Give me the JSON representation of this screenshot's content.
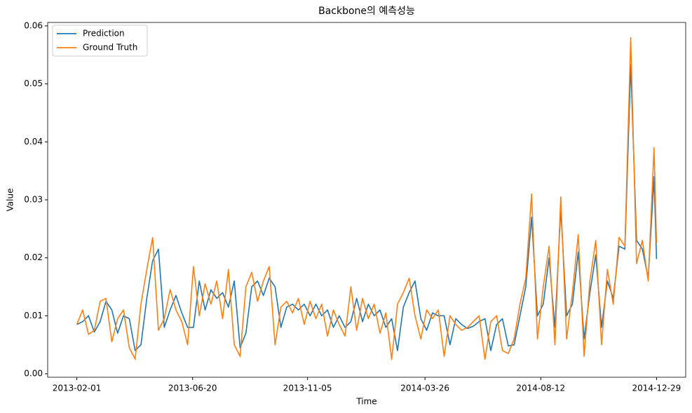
{
  "chart_data": {
    "type": "line",
    "title": "Backbone의 예측성능",
    "x_label": "Time",
    "y_label": "Value",
    "x": [
      "2013-02-01",
      "2013-02-08",
      "2013-02-15",
      "2013-02-22",
      "2013-03-01",
      "2013-03-08",
      "2013-03-15",
      "2013-03-22",
      "2013-03-29",
      "2013-04-05",
      "2013-04-12",
      "2013-04-19",
      "2013-04-26",
      "2013-05-03",
      "2013-05-10",
      "2013-05-17",
      "2013-05-24",
      "2013-05-31",
      "2013-06-07",
      "2013-06-14",
      "2013-06-21",
      "2013-06-28",
      "2013-07-05",
      "2013-07-12",
      "2013-07-19",
      "2013-07-26",
      "2013-08-02",
      "2013-08-09",
      "2013-08-16",
      "2013-08-23",
      "2013-08-30",
      "2013-09-06",
      "2013-09-13",
      "2013-09-20",
      "2013-09-27",
      "2013-10-04",
      "2013-10-11",
      "2013-10-18",
      "2013-10-25",
      "2013-11-01",
      "2013-11-08",
      "2013-11-15",
      "2013-11-22",
      "2013-11-29",
      "2013-12-06",
      "2013-12-13",
      "2013-12-20",
      "2013-12-27",
      "2014-01-03",
      "2014-01-10",
      "2014-01-17",
      "2014-01-24",
      "2014-01-31",
      "2014-02-07",
      "2014-02-14",
      "2014-02-21",
      "2014-02-28",
      "2014-03-07",
      "2014-03-14",
      "2014-03-21",
      "2014-03-28",
      "2014-04-04",
      "2014-04-11",
      "2014-04-18",
      "2014-04-25",
      "2014-05-02",
      "2014-05-09",
      "2014-05-16",
      "2014-05-23",
      "2014-05-30",
      "2014-06-06",
      "2014-06-13",
      "2014-06-20",
      "2014-06-27",
      "2014-07-04",
      "2014-07-11",
      "2014-07-18",
      "2014-07-25",
      "2014-08-01",
      "2014-08-08",
      "2014-08-15",
      "2014-08-22",
      "2014-08-29",
      "2014-09-05",
      "2014-09-12",
      "2014-09-19",
      "2014-09-26",
      "2014-10-03",
      "2014-10-10",
      "2014-10-17",
      "2014-10-24",
      "2014-10-31",
      "2014-11-07",
      "2014-11-14",
      "2014-11-21",
      "2014-11-28",
      "2014-12-05",
      "2014-12-12",
      "2014-12-19",
      "2014-12-26",
      "2014-12-29"
    ],
    "series": [
      {
        "name": "Prediction",
        "color": "#1f77b4",
        "values": [
          0.0085,
          0.009,
          0.01,
          0.0072,
          0.009,
          0.0125,
          0.011,
          0.007,
          0.01,
          0.0095,
          0.004,
          0.005,
          0.013,
          0.0195,
          0.0215,
          0.008,
          0.011,
          0.0135,
          0.0105,
          0.008,
          0.008,
          0.016,
          0.011,
          0.0145,
          0.013,
          0.014,
          0.0115,
          0.016,
          0.0045,
          0.007,
          0.015,
          0.016,
          0.0135,
          0.0165,
          0.015,
          0.008,
          0.0115,
          0.012,
          0.011,
          0.012,
          0.01,
          0.012,
          0.01,
          0.011,
          0.008,
          0.01,
          0.008,
          0.009,
          0.013,
          0.009,
          0.012,
          0.01,
          0.011,
          0.008,
          0.0095,
          0.004,
          0.0115,
          0.014,
          0.016,
          0.0095,
          0.0075,
          0.0105,
          0.01,
          0.01,
          0.005,
          0.0095,
          0.0085,
          0.0078,
          0.0082,
          0.009,
          0.0095,
          0.004,
          0.0085,
          0.0095,
          0.0048,
          0.005,
          0.01,
          0.015,
          0.027,
          0.01,
          0.012,
          0.02,
          0.008,
          0.0285,
          0.01,
          0.012,
          0.021,
          0.006,
          0.014,
          0.0205,
          0.008,
          0.016,
          0.013,
          0.022,
          0.0215,
          0.0533,
          0.023,
          0.0215,
          0.0165,
          0.034,
          0.0198
        ]
      },
      {
        "name": "Ground Truth",
        "color": "#ff7f0e",
        "values": [
          0.0085,
          0.011,
          0.0068,
          0.0075,
          0.0125,
          0.013,
          0.0055,
          0.0095,
          0.011,
          0.0045,
          0.0025,
          0.012,
          0.018,
          0.0235,
          0.0075,
          0.0095,
          0.0145,
          0.011,
          0.009,
          0.005,
          0.0185,
          0.01,
          0.0155,
          0.012,
          0.016,
          0.0095,
          0.018,
          0.005,
          0.003,
          0.015,
          0.0175,
          0.0125,
          0.016,
          0.0185,
          0.005,
          0.0115,
          0.0125,
          0.0105,
          0.013,
          0.0085,
          0.0125,
          0.0095,
          0.012,
          0.0065,
          0.011,
          0.0085,
          0.0065,
          0.015,
          0.0075,
          0.013,
          0.0095,
          0.012,
          0.007,
          0.0105,
          0.0025,
          0.012,
          0.014,
          0.0165,
          0.01,
          0.006,
          0.011,
          0.0095,
          0.011,
          0.003,
          0.01,
          0.0085,
          0.0075,
          0.008,
          0.009,
          0.01,
          0.0025,
          0.009,
          0.01,
          0.004,
          0.0035,
          0.006,
          0.012,
          0.0165,
          0.031,
          0.006,
          0.015,
          0.022,
          0.005,
          0.0305,
          0.006,
          0.014,
          0.024,
          0.003,
          0.016,
          0.023,
          0.005,
          0.018,
          0.012,
          0.0235,
          0.022,
          0.058,
          0.019,
          0.023,
          0.016,
          0.039,
          0.0225
        ]
      }
    ],
    "xlim": [
      "2012-12-28",
      "2015-02-02"
    ],
    "xticks": [
      "2013-02-01",
      "2013-06-20",
      "2013-11-05",
      "2014-03-26",
      "2014-08-12",
      "2014-12-29"
    ],
    "ylim": [
      -0.0006,
      0.0606
    ],
    "yticks": [
      {
        "value": 0,
        "label": "0.00"
      },
      0.01,
      0.02,
      0.03,
      0.04,
      0.05,
      0.06
    ],
    "legend": "upper left"
  }
}
